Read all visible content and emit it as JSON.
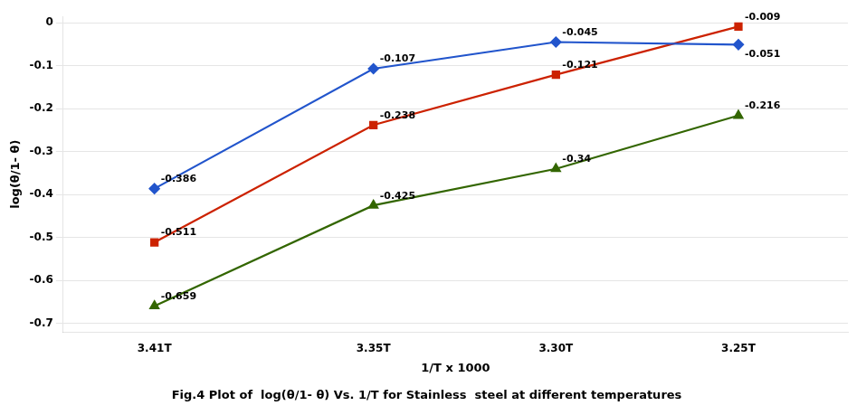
{
  "chart_data": {
    "type": "line",
    "title": "Fig.4 Plot of  log(θ/1- θ) Vs. 1/T for Stainless  steel at different temperatures",
    "x_label": "1/T x 1000",
    "y_label": "log(θ/1- θ)",
    "x": [
      3.41,
      3.35,
      3.3,
      3.25
    ],
    "series": [
      {
        "color": "#2255CC",
        "marker": "diamond",
        "values": [
          -0.386,
          -0.107,
          -0.045,
          -0.051
        ]
      },
      {
        "color": "#CC2200",
        "marker": "square",
        "values": [
          -0.511,
          -0.238,
          -0.121,
          -0.009
        ]
      },
      {
        "color": "#336600",
        "marker": "triangle",
        "values": [
          -0.659,
          -0.425,
          -0.34,
          -0.216
        ]
      }
    ],
    "xlim": [
      3.435,
      3.22
    ],
    "xticks": [
      {
        "value": 3.41,
        "label": "3.41T"
      },
      {
        "value": 3.35,
        "label": "3.35T"
      },
      {
        "value": 3.3,
        "label": "3.30T"
      },
      {
        "value": 3.25,
        "label": "3.25T"
      }
    ],
    "ylim": [
      -0.72,
      0.015
    ],
    "yticks": [
      0,
      -0.1,
      -0.2,
      -0.3,
      -0.4,
      -0.5,
      -0.6,
      -0.7
    ],
    "grid": "y",
    "data_labels": true
  }
}
